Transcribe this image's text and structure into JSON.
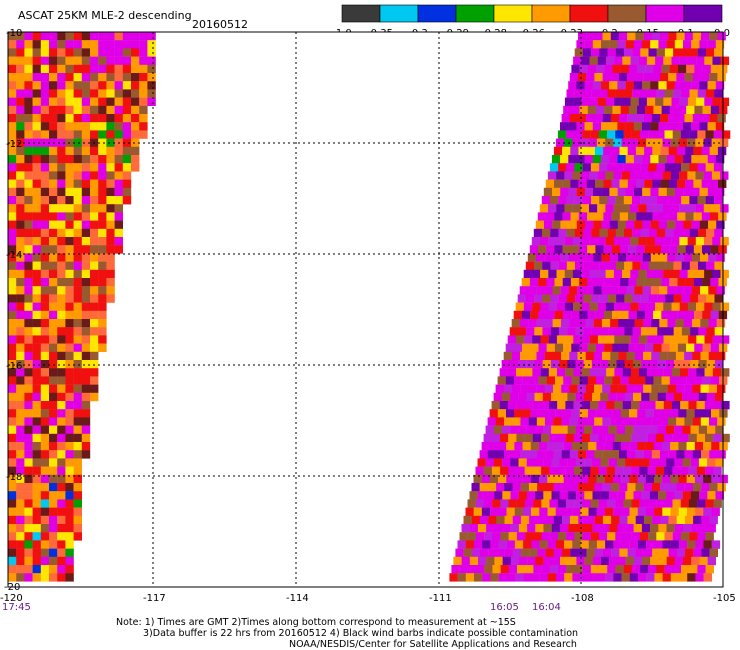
{
  "header": {
    "title": "ASCAT 25KM MLE-2 descending",
    "date": "20160512"
  },
  "colorbar": {
    "colors": [
      "#3a3a3a",
      "#00c8f0",
      "#0030e0",
      "#00a000",
      "#ffe600",
      "#ff9a00",
      "#f01010",
      "#9a5a30",
      "#e000e8",
      "#7000b0"
    ],
    "tick_labels": [
      "-1.0",
      "-0.35",
      "-0.3",
      "-0.29",
      "-0.28",
      "-0.26",
      "-0.23",
      "-0.2",
      "-0.15",
      "-0.1",
      "0.0"
    ]
  },
  "axes": {
    "lat_labels": [
      "-10",
      "-12",
      "-14",
      "-16",
      "-18",
      "-20"
    ],
    "lon_labels": [
      "-120",
      "-117",
      "-114",
      "-111",
      "-108",
      "-105"
    ],
    "lat_range": [
      -20,
      -10
    ],
    "lon_range": [
      -120,
      -105
    ]
  },
  "times": {
    "left": "17:45",
    "right_a": "16:05",
    "right_b": "16:04"
  },
  "notes": {
    "line1": "Note: 1) Times are GMT 2)Times along bottom correspond to measurement at ~15S",
    "line2": "3)Data buffer is 22 hrs from 20160512 4) Black wind barbs indicate possible contamination",
    "line3": "NOAA/NESDIS/Center for Satellite Applications and Research"
  }
}
